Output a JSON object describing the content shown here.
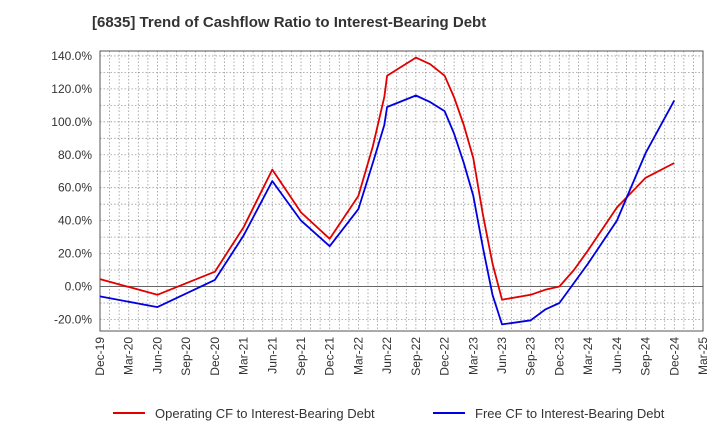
{
  "chart_data": {
    "type": "line",
    "title": "[6835]  Trend of Cashflow Ratio to Interest-Bearing Debt",
    "xlabel": "",
    "ylabel": "",
    "x_tick_labels": [
      "Dec-19",
      "Mar-20",
      "Jun-20",
      "Sep-20",
      "Dec-20",
      "Mar-21",
      "Jun-21",
      "Sep-21",
      "Dec-21",
      "Mar-22",
      "Jun-22",
      "Sep-22",
      "Dec-22",
      "Mar-23",
      "Jun-23",
      "Sep-23",
      "Dec-23",
      "Mar-24",
      "Jun-24",
      "Sep-24",
      "Dec-24",
      "Mar-25"
    ],
    "y_tick_labels": [
      "140.0%",
      "120.0%",
      "100.0%",
      "80.0%",
      "60.0%",
      "40.0%",
      "20.0%",
      "0.0%",
      "-20.0%"
    ],
    "ylim": [
      -27,
      143
    ],
    "y_ticks": [
      140,
      120,
      100,
      80,
      60,
      40,
      20,
      0,
      -20
    ],
    "grid": true,
    "legend_position": "bottom",
    "series": [
      {
        "name": "Operating CF to Interest-Bearing Debt",
        "color": "#e00000",
        "points": [
          [
            0,
            4.5
          ],
          [
            2,
            -5
          ],
          [
            4,
            9
          ],
          [
            5,
            36
          ],
          [
            6,
            71
          ],
          [
            7,
            45
          ],
          [
            8,
            29
          ],
          [
            9,
            55
          ],
          [
            9.5,
            85
          ],
          [
            9.9,
            115
          ],
          [
            10,
            128
          ],
          [
            11,
            139
          ],
          [
            11.5,
            135
          ],
          [
            12,
            128
          ],
          [
            12.33,
            115
          ],
          [
            12.67,
            98
          ],
          [
            13,
            78
          ],
          [
            13.33,
            44
          ],
          [
            13.67,
            14
          ],
          [
            14,
            -8
          ],
          [
            15,
            -5
          ],
          [
            15.5,
            -2
          ],
          [
            16,
            0
          ],
          [
            16.5,
            10
          ],
          [
            17,
            22
          ],
          [
            18,
            48
          ],
          [
            19,
            66
          ],
          [
            20,
            75
          ]
        ]
      },
      {
        "name": "Free CF to Interest-Bearing Debt",
        "color": "#0000e0",
        "points": [
          [
            0,
            -6
          ],
          [
            2,
            -12.5
          ],
          [
            4,
            4
          ],
          [
            5,
            31
          ],
          [
            6,
            64
          ],
          [
            7,
            40
          ],
          [
            8,
            24.5
          ],
          [
            9,
            47
          ],
          [
            9.5,
            75
          ],
          [
            9.9,
            98
          ],
          [
            10,
            109
          ],
          [
            11,
            116
          ],
          [
            11.5,
            112
          ],
          [
            12,
            106.5
          ],
          [
            12.33,
            93
          ],
          [
            12.67,
            75
          ],
          [
            13,
            55
          ],
          [
            13.33,
            24
          ],
          [
            13.67,
            -5
          ],
          [
            14,
            -23
          ],
          [
            15,
            -20.5
          ],
          [
            15.5,
            -14
          ],
          [
            16,
            -10
          ],
          [
            17,
            14
          ],
          [
            18,
            40
          ],
          [
            19,
            81
          ],
          [
            20,
            113
          ]
        ]
      }
    ]
  }
}
